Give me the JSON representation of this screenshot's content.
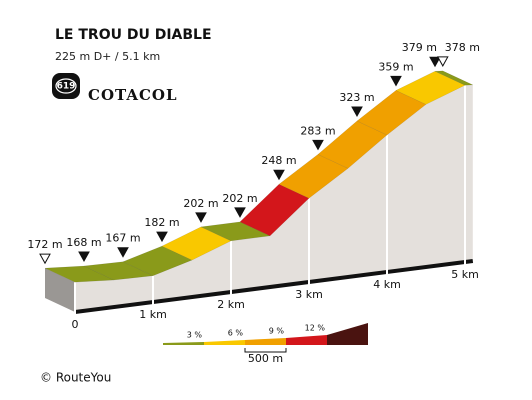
{
  "header": {
    "title": "LE TROU DU DIABLE",
    "subtitle": "225 m D+ / 5.1 km",
    "badge": "619",
    "brand": "COTACOL"
  },
  "chart_data": {
    "type": "elevation-profile",
    "x": [
      0,
      0.5,
      1,
      1.5,
      2,
      2.5,
      3,
      3.5,
      4,
      4.5,
      5,
      5.1
    ],
    "series": [
      {
        "values": [
          172,
          168,
          167,
          182,
          202,
          202,
          248,
          283,
          323,
          359,
          379,
          378
        ],
        "value_labels": [
          "172 m",
          "168 m",
          "167 m",
          "182 m",
          "202 m",
          "202 m",
          "248 m",
          "283 m",
          "323 m",
          "359 m",
          "379 m",
          "378 m"
        ]
      }
    ],
    "xticks": [
      0,
      {
        "value": 1,
        "label": "1 km"
      },
      {
        "value": 2,
        "label": "2 km"
      },
      {
        "value": 3,
        "label": "3 km"
      },
      {
        "value": 4,
        "label": "4 km"
      },
      {
        "value": 5,
        "label": "5 km"
      }
    ],
    "legend": {
      "colors": [
        "#8a9a1a",
        "#f9c800",
        "#f0a000",
        "#d3161b",
        "#4a1310"
      ],
      "ticks": [
        {
          "value": 3,
          "label": "3 %"
        },
        {
          "value": 6,
          "label": "6 %"
        },
        {
          "value": 9,
          "label": "9 %"
        },
        {
          "value": 12,
          "label": "12 %"
        }
      ],
      "scale_label": "500 m"
    }
  },
  "footer": {
    "credit": "© RouteYou"
  }
}
